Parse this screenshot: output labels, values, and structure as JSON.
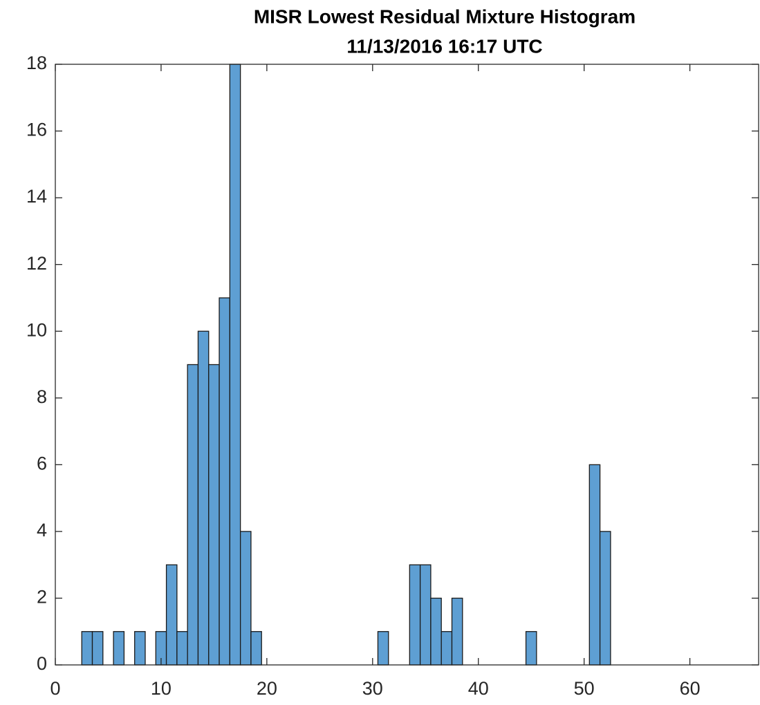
{
  "chart_data": {
    "type": "histogram",
    "title": "MISR Lowest Residual Mixture Histogram",
    "subtitle": "11/13/2016 16:17 UTC",
    "bins": [
      2.5,
      3.5,
      4.5,
      5.5,
      6.5,
      7.5,
      8.5,
      9.5,
      10.5,
      11.5,
      12.5,
      13.5,
      14.5,
      15.5,
      16.5,
      17.5,
      18.5,
      19.5,
      20.5,
      21.5,
      22.5,
      23.5,
      24.5,
      25.5,
      26.5,
      27.5,
      28.5,
      29.5,
      30.5,
      31.5,
      32.5,
      33.5,
      34.5,
      35.5,
      36.5,
      37.5,
      38.5,
      39.5,
      40.5,
      41.5,
      42.5,
      43.5,
      44.5,
      45.5,
      46.5,
      47.5,
      48.5,
      49.5,
      50.5,
      51.5,
      52.5
    ],
    "values": [
      1,
      1,
      0,
      1,
      0,
      1,
      0,
      1,
      3,
      1,
      9,
      10,
      9,
      11,
      18,
      4,
      1,
      0,
      0,
      0,
      0,
      0,
      0,
      0,
      0,
      0,
      0,
      0,
      1,
      0,
      0,
      3,
      3,
      2,
      1,
      2,
      0,
      0,
      0,
      0,
      0,
      0,
      1,
      0,
      0,
      0,
      0,
      0,
      6,
      4
    ],
    "color": "#5e9fd3",
    "xlim": [
      0,
      66.5
    ],
    "ylim": [
      0,
      18
    ],
    "xticks": [
      0,
      10,
      20,
      30,
      40,
      50,
      60
    ],
    "yticks": [
      0,
      2,
      4,
      6,
      8,
      10,
      12,
      14,
      16,
      18
    ],
    "grid": false
  }
}
